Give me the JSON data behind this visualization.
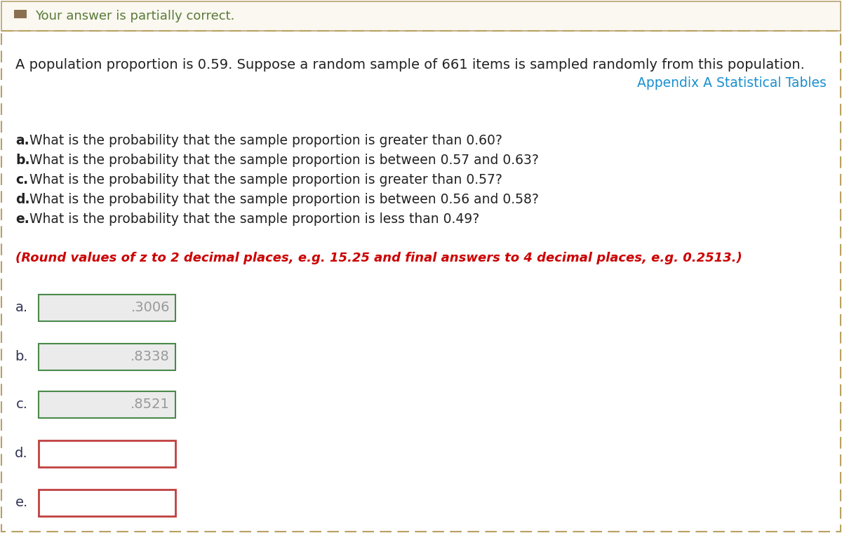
{
  "background_color": "#ffffff",
  "header_bg_color": "#faf8f0",
  "header_border_color": "#b8a070",
  "header_text": "Your answer is partially correct.",
  "header_text_color": "#5a7a3a",
  "header_icon_color": "#8a7050",
  "dashed_border_color": "#b8a060",
  "main_text_line1": "A population proportion is 0.59. Suppose a random sample of 661 items is sampled randomly from this population.",
  "main_text_color": "#222222",
  "appendix_text": "Appendix A Statistical Tables",
  "appendix_color": "#1a90d0",
  "question_a": "a. What is the probability that the sample proportion is greater than 0.60?",
  "question_b": "b. What is the probability that the sample proportion is between 0.57 and 0.63?",
  "question_c": "c. What is the probability that the sample proportion is greater than 0.57?",
  "question_d": "d. What is the probability that the sample proportion is between 0.56 and 0.58?",
  "question_e": "e. What is the probability that the sample proportion is less than 0.49?",
  "question_letters": [
    "a.",
    "b.",
    "c.",
    "d.",
    "e."
  ],
  "question_bodies": [
    "What is the probability that the sample proportion is greater than 0.60?",
    "What is the probability that the sample proportion is between 0.57 and 0.63?",
    "What is the probability that the sample proportion is greater than 0.57?",
    "What is the probability that the sample proportion is between 0.56 and 0.58?",
    "What is the probability that the sample proportion is less than 0.49?"
  ],
  "round_note": "(Round values of z to 2 decimal places, e.g. 15.25 and final answers to 4 decimal places, e.g. 0.2513.)",
  "round_note_color": "#cc0000",
  "label_a": "a.",
  "label_b": "b.",
  "label_c": "c.",
  "label_d": "d.",
  "label_e": "e.",
  "value_a": ".3006",
  "value_b": ".8338",
  "value_c": ".8521",
  "value_d": "",
  "value_e": "",
  "box_fill_correct": "#ebebeb",
  "box_border_correct": "#4a8a4a",
  "box_fill_incorrect": "#ffffff",
  "box_border_incorrect": "#c04040",
  "value_text_color": "#999999",
  "label_text_color": "#333355",
  "font_size_main": 14,
  "font_size_questions": 13.5,
  "font_size_round": 13,
  "font_size_answers": 14,
  "font_size_header": 13
}
